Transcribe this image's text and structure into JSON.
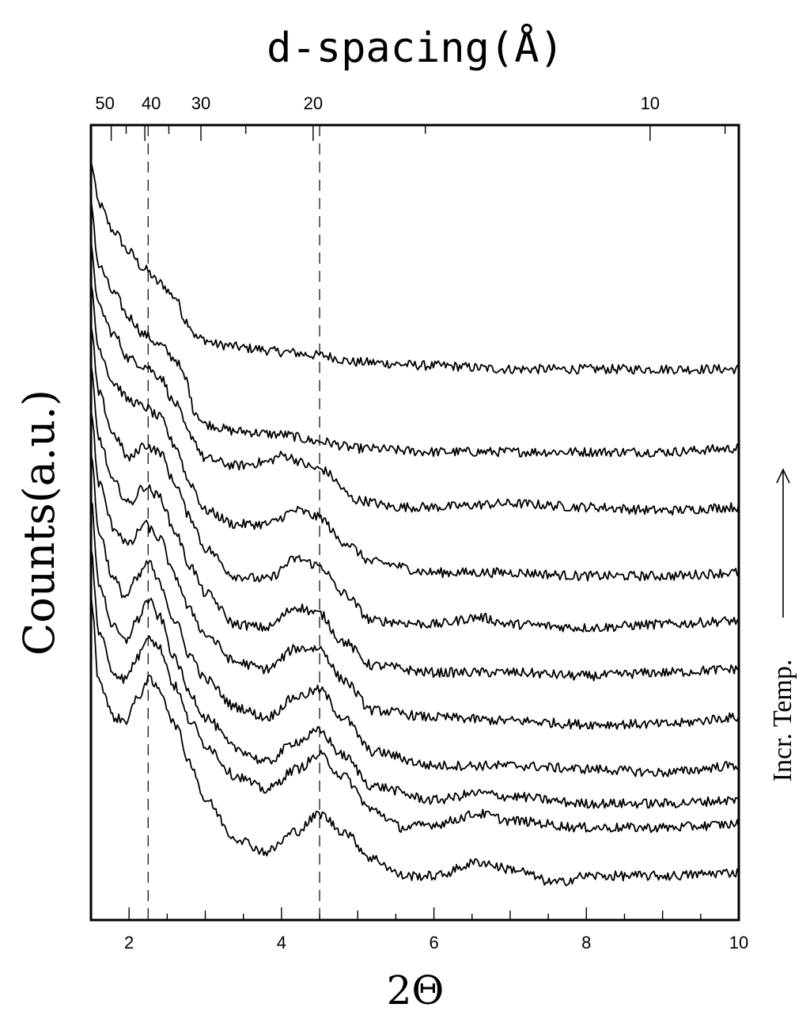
{
  "chart_data": {
    "type": "line",
    "title_top": "d-spacing(Å)",
    "xlabel": "2Θ",
    "ylabel": "Counts(a.u.)",
    "annotation": "Incr. Temp.",
    "xlim": [
      1.5,
      10
    ],
    "bottom_ticks": [
      2,
      4,
      6,
      8,
      10
    ],
    "top_tick_labels": [
      {
        "label": "50",
        "d": 50
      },
      {
        "label": "40",
        "d": 40
      },
      {
        "label": "30",
        "d": 30
      },
      {
        "label": "20",
        "d": 20
      },
      {
        "label": "10",
        "d": 10
      }
    ],
    "top_minor_d": [
      100,
      90,
      80,
      70,
      60,
      50,
      45,
      40,
      35,
      30,
      25,
      20,
      15,
      10,
      9
    ],
    "reference_lines_2theta": [
      2.25,
      4.5
    ],
    "grid": false,
    "legend": "none",
    "series_count": 11,
    "y_units": "arbitrary, curves vertically offset",
    "series": [
      {
        "x": [
          1.5,
          1.6,
          1.8,
          2.0,
          2.2,
          2.4,
          2.6,
          2.75,
          2.9,
          3.2,
          3.6,
          4.0,
          4.5,
          5.0,
          6.0,
          7.0,
          8.0,
          9.0,
          10.0
        ],
        "y": [
          10.0,
          9.4,
          9.0,
          8.7,
          8.45,
          8.25,
          8.05,
          7.7,
          7.45,
          7.35,
          7.3,
          7.25,
          7.2,
          7.1,
          7.05,
          7.0,
          7.0,
          7.0,
          7.0
        ]
      },
      {
        "x": [
          1.5,
          1.6,
          1.8,
          2.0,
          2.2,
          2.4,
          2.6,
          2.75,
          2.85,
          3.0,
          3.4,
          4.0,
          4.5,
          5.0,
          6.0,
          7.0,
          8.0,
          9.0,
          10.0
        ],
        "y": [
          9.4,
          8.5,
          8.1,
          7.75,
          7.5,
          7.35,
          7.15,
          6.85,
          6.4,
          6.2,
          6.1,
          6.05,
          5.95,
          5.85,
          5.8,
          5.8,
          5.8,
          5.8,
          5.85
        ]
      },
      {
        "x": [
          1.5,
          1.6,
          1.8,
          2.0,
          2.2,
          2.4,
          2.6,
          2.8,
          3.0,
          3.4,
          3.8,
          4.0,
          4.5,
          5.0,
          5.5,
          6.0,
          7.0,
          8.0,
          9.0,
          10.0
        ],
        "y": [
          8.8,
          7.9,
          7.5,
          7.15,
          7.05,
          6.9,
          6.5,
          6.05,
          5.7,
          5.6,
          5.65,
          5.75,
          5.55,
          5.1,
          5.0,
          5.0,
          5.05,
          5.0,
          4.95,
          5.0
        ]
      },
      {
        "x": [
          1.5,
          1.6,
          1.8,
          2.0,
          2.2,
          2.4,
          2.6,
          2.8,
          3.0,
          3.4,
          3.8,
          4.2,
          4.5,
          4.8,
          5.2,
          6.0,
          7.0,
          8.0,
          9.0,
          10.0
        ],
        "y": [
          8.2,
          7.3,
          6.8,
          6.55,
          6.45,
          6.3,
          5.9,
          5.35,
          4.95,
          4.75,
          4.75,
          4.95,
          4.85,
          4.5,
          4.2,
          4.05,
          4.05,
          4.0,
          4.0,
          4.05
        ]
      },
      {
        "x": [
          1.5,
          1.6,
          1.8,
          2.0,
          2.2,
          2.4,
          2.6,
          2.8,
          3.0,
          3.4,
          3.8,
          4.2,
          4.5,
          4.8,
          5.2,
          6.0,
          6.6,
          7.0,
          8.0,
          9.0,
          10.0
        ],
        "y": [
          7.6,
          6.65,
          6.05,
          5.7,
          5.9,
          5.8,
          5.35,
          4.85,
          4.4,
          4.0,
          3.95,
          4.25,
          4.15,
          3.75,
          3.35,
          3.3,
          3.4,
          3.3,
          3.25,
          3.3,
          3.35
        ]
      },
      {
        "x": [
          1.5,
          1.6,
          1.8,
          2.0,
          2.2,
          2.4,
          2.6,
          2.8,
          3.0,
          3.4,
          3.8,
          4.2,
          4.5,
          4.8,
          5.2,
          6.0,
          7.0,
          8.0,
          9.0,
          10.0
        ],
        "y": [
          7.0,
          6.0,
          5.35,
          5.05,
          5.3,
          5.15,
          4.65,
          4.15,
          3.75,
          3.3,
          3.25,
          3.55,
          3.45,
          3.05,
          2.7,
          2.6,
          2.6,
          2.55,
          2.6,
          2.65
        ]
      },
      {
        "x": [
          1.5,
          1.6,
          1.8,
          2.0,
          2.2,
          2.4,
          2.6,
          2.8,
          3.0,
          3.4,
          3.8,
          4.2,
          4.5,
          4.8,
          5.2,
          6.0,
          7.0,
          8.0,
          9.0,
          10.0
        ],
        "y": [
          6.4,
          5.35,
          4.7,
          4.45,
          4.75,
          4.55,
          4.0,
          3.5,
          3.15,
          2.75,
          2.65,
          2.95,
          2.95,
          2.5,
          2.05,
          1.95,
          1.9,
          1.85,
          1.85,
          1.95
        ]
      },
      {
        "x": [
          1.5,
          1.6,
          1.8,
          1.95,
          2.1,
          2.25,
          2.4,
          2.6,
          2.8,
          3.0,
          3.4,
          3.8,
          4.2,
          4.5,
          4.8,
          5.2,
          6.0,
          7.0,
          8.0,
          9.0,
          10.0
        ],
        "y": [
          5.8,
          4.65,
          3.95,
          3.7,
          3.95,
          4.2,
          3.9,
          3.35,
          2.85,
          2.5,
          2.1,
          1.95,
          2.25,
          2.35,
          1.95,
          1.45,
          1.25,
          1.25,
          1.2,
          1.15,
          1.25
        ]
      },
      {
        "x": [
          1.5,
          1.6,
          1.8,
          1.95,
          2.1,
          2.25,
          2.4,
          2.6,
          2.8,
          3.0,
          3.4,
          3.8,
          4.2,
          4.5,
          4.8,
          5.2,
          6.0,
          6.6,
          7.0,
          8.0,
          9.0,
          10.0
        ],
        "y": [
          5.1,
          3.9,
          3.25,
          3.05,
          3.35,
          3.65,
          3.4,
          2.8,
          2.3,
          1.95,
          1.5,
          1.3,
          1.6,
          1.75,
          1.4,
          0.95,
          0.75,
          0.85,
          0.8,
          0.7,
          0.7,
          0.75
        ]
      },
      {
        "x": [
          1.5,
          1.6,
          1.8,
          1.95,
          2.1,
          2.25,
          2.4,
          2.6,
          2.8,
          3.0,
          3.4,
          3.8,
          4.2,
          4.5,
          4.8,
          5.2,
          5.6,
          6.0,
          6.6,
          7.0,
          8.0,
          9.0,
          10.0
        ],
        "y": [
          4.4,
          3.2,
          2.6,
          2.5,
          2.8,
          3.15,
          2.95,
          2.4,
          1.9,
          1.55,
          1.1,
          0.9,
          1.2,
          1.4,
          1.1,
          0.6,
          0.35,
          0.4,
          0.55,
          0.45,
          0.35,
          0.35,
          0.4
        ]
      },
      {
        "x": [
          1.5,
          1.6,
          1.8,
          1.95,
          2.1,
          2.25,
          2.4,
          2.6,
          2.8,
          3.0,
          3.4,
          3.8,
          4.2,
          4.5,
          4.8,
          5.2,
          5.6,
          6.0,
          6.6,
          7.0,
          7.6,
          8.0,
          9.0,
          10.0
        ],
        "y": [
          3.7,
          2.5,
          1.95,
          1.9,
          2.2,
          2.5,
          2.35,
          1.85,
          1.3,
          0.75,
          0.2,
          0.0,
          0.3,
          0.55,
          0.3,
          -0.1,
          -0.35,
          -0.35,
          -0.15,
          -0.25,
          -0.45,
          -0.35,
          -0.35,
          -0.3
        ]
      }
    ]
  }
}
